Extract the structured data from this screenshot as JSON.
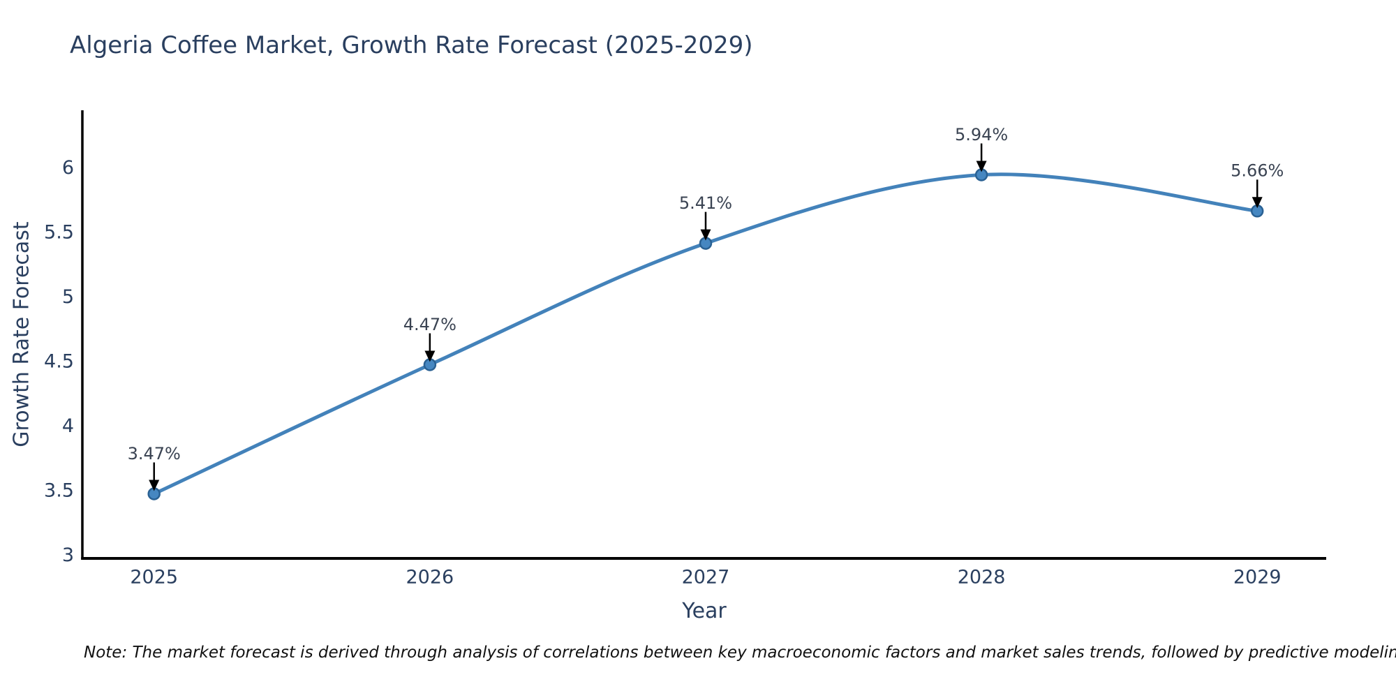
{
  "note": "Note: The market forecast is derived through analysis of correlations between key macroeconomic factors and market sales trends, followed by predictive modeling to project future sales",
  "chart_data": {
    "type": "line",
    "title": "Algeria Coffee Market, Growth Rate Forecast (2025-2029)",
    "xlabel": "Year",
    "ylabel": "Growth Rate Forecast",
    "x": [
      2025,
      2026,
      2027,
      2028,
      2029
    ],
    "series": [
      {
        "name": "Growth Rate Forecast",
        "values": [
          3.47,
          4.47,
          5.41,
          5.94,
          5.66
        ]
      }
    ],
    "point_labels": [
      "3.47%",
      "4.47%",
      "5.41%",
      "5.94%",
      "5.66%"
    ],
    "yticks": [
      3,
      3.5,
      4,
      4.5,
      5,
      5.5,
      6
    ],
    "ylim": [
      2.97,
      6.44
    ],
    "xlim": [
      2024.74,
      2029.25
    ],
    "grid": false,
    "legend": "none",
    "line_shape": "spline",
    "marker": "circle",
    "annotation_arrow": "down",
    "colors": {
      "line": "#4382ba",
      "marker_fill": "#4687c1",
      "marker_edge": "#2a6193",
      "axis": "#000000",
      "text": "#2a3f5f",
      "annotation_text": "#3a4352",
      "arrow": "#000000",
      "background": "#ffffff"
    }
  }
}
